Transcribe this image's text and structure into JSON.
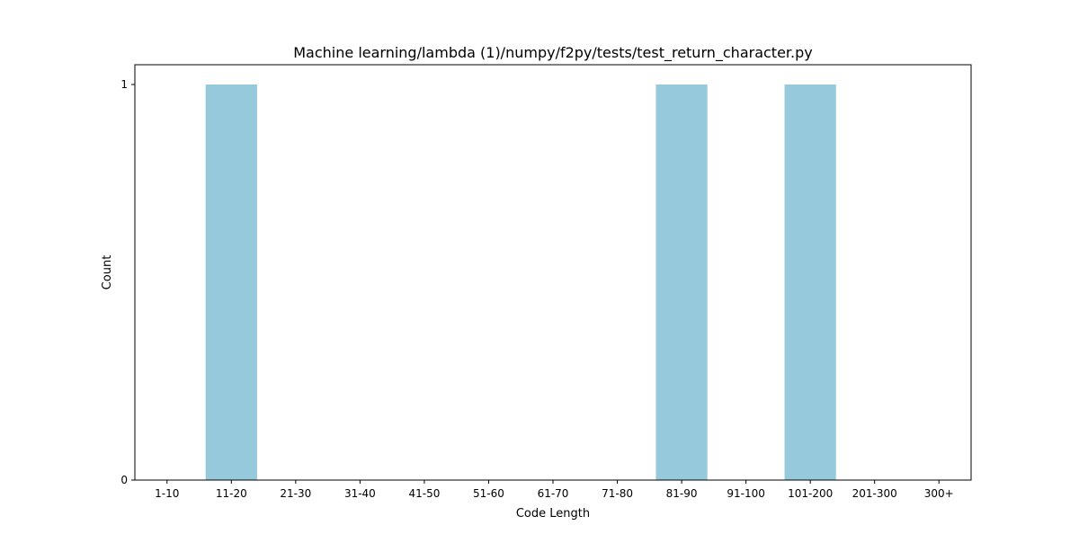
{
  "chart_data": {
    "type": "bar",
    "title": "Machine learning/lambda (1)/numpy/f2py/tests/test_return_character.py",
    "xlabel": "Code Length",
    "ylabel": "Count",
    "categories": [
      "1-10",
      "11-20",
      "21-30",
      "31-40",
      "41-50",
      "51-60",
      "61-70",
      "71-80",
      "81-90",
      "91-100",
      "101-200",
      "201-300",
      "300+"
    ],
    "values": [
      0,
      1,
      0,
      0,
      0,
      0,
      0,
      0,
      1,
      0,
      1,
      0,
      0
    ],
    "ylim": [
      0,
      1.05
    ],
    "yticks": [
      "0",
      "1"
    ],
    "bar_color": "#96c9dc",
    "grid": false,
    "legend": "none"
  }
}
